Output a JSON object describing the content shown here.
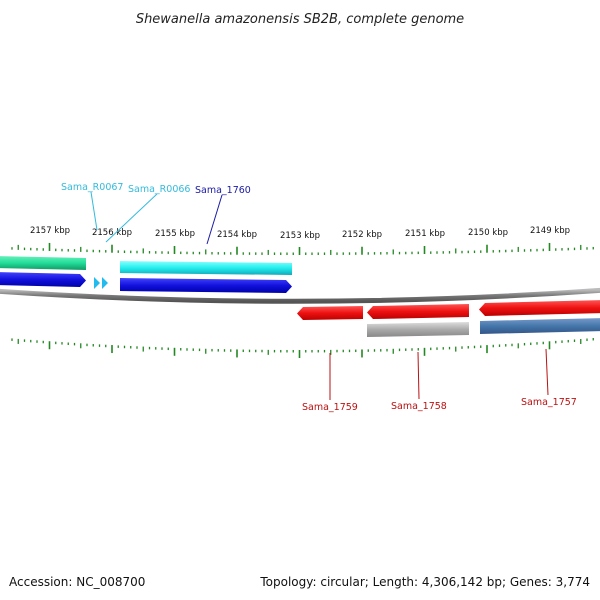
{
  "title": "Shewanella amazonensis SB2B, complete genome",
  "footer": {
    "accession": "Accession: NC_008700",
    "summary": "Topology: circular; Length: 4,306,142 bp; Genes: 3,774"
  },
  "ruler": {
    "labels": [
      "2157 kbp",
      "2156 kbp",
      "2155 kbp",
      "2154 kbp",
      "2153 kbp",
      "2152 kbp",
      "2151 kbp",
      "2150 kbp",
      "2149 kbp"
    ]
  },
  "genes": {
    "top": [
      {
        "id": "Sama_R0067",
        "color": "#33bbdd"
      },
      {
        "id": "Sama_R0066",
        "color": "#33bbdd"
      },
      {
        "id": "Sama_1760",
        "color": "#1a1aa8"
      }
    ],
    "bottom": [
      {
        "id": "Sama_1759",
        "color": "#bb1111"
      },
      {
        "id": "Sama_1758",
        "color": "#bb1111"
      },
      {
        "id": "Sama_1757",
        "color": "#bb1111"
      }
    ]
  },
  "colors": {
    "rna_feature": "#22ddee",
    "cds_forward": "#1111dd",
    "cds_reverse": "#ee1111",
    "gene_forward": "#22dd99",
    "gene_reverse_grey": "#aaaaaa",
    "gene_reverse_blue": "#4477aa",
    "backbone": "#888888",
    "ticks": "#228822"
  }
}
